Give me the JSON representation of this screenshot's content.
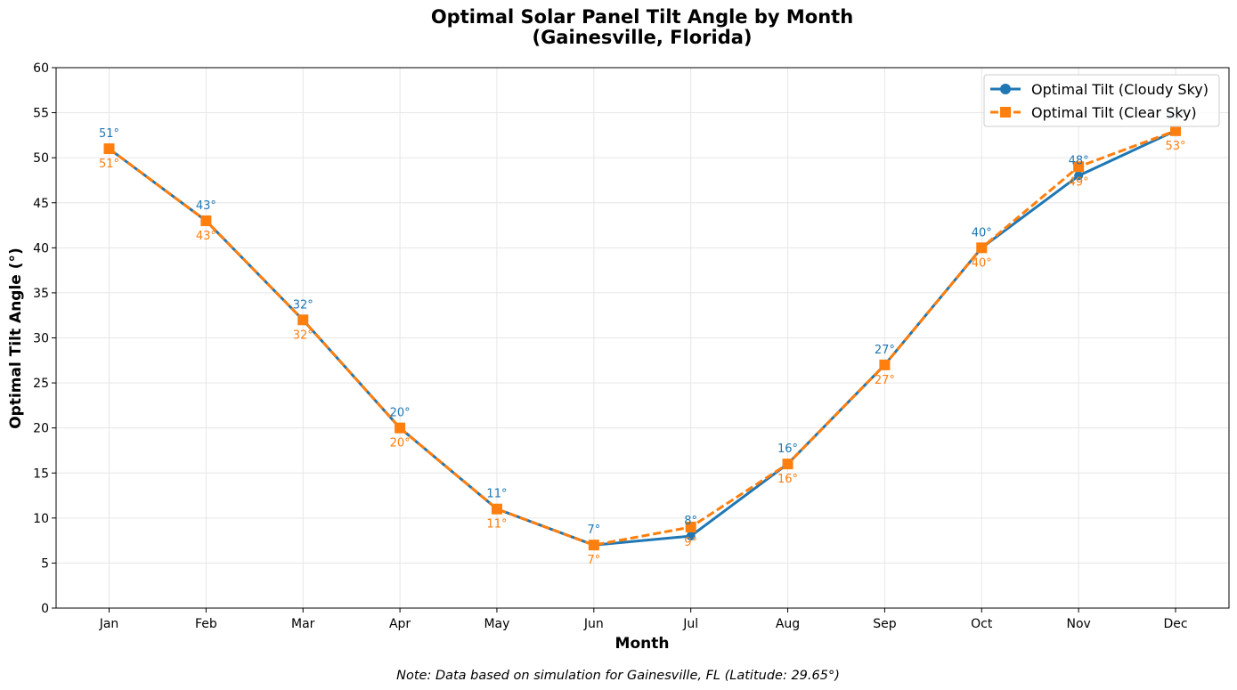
{
  "chart_data": {
    "type": "line",
    "title_line1": "Optimal Solar Panel Tilt Angle by Month",
    "title_line2": "(Gainesville, Florida)",
    "xlabel": "Month",
    "ylabel": "Optimal Tilt Angle (°)",
    "categories": [
      "Jan",
      "Feb",
      "Mar",
      "Apr",
      "May",
      "Jun",
      "Jul",
      "Aug",
      "Sep",
      "Oct",
      "Nov",
      "Dec"
    ],
    "ylim": [
      0,
      60
    ],
    "yticks": [
      0,
      5,
      10,
      15,
      20,
      25,
      30,
      35,
      40,
      45,
      50,
      55,
      60
    ],
    "grid": true,
    "legend_position": "top-right",
    "series": [
      {
        "name": "Optimal Tilt (Cloudy Sky)",
        "values": [
          51,
          43,
          32,
          20,
          11,
          7,
          8,
          16,
          27,
          40,
          48,
          53
        ],
        "labels": [
          "51°",
          "43°",
          "32°",
          "20°",
          "11°",
          "7°",
          "8°",
          "16°",
          "27°",
          "40°",
          "48°",
          "53°"
        ],
        "color": "#1f77b4",
        "line_style": "solid",
        "marker": "circle"
      },
      {
        "name": "Optimal Tilt (Clear Sky)",
        "values": [
          51,
          43,
          32,
          20,
          11,
          7,
          9,
          16,
          27,
          40,
          49,
          53
        ],
        "labels": [
          "51°",
          "43°",
          "32°",
          "20°",
          "11°",
          "7°",
          "9°",
          "16°",
          "27°",
          "40°",
          "49°",
          "53°"
        ],
        "color": "#ff7f0e",
        "line_style": "dashed",
        "marker": "square"
      }
    ],
    "note": "Note: Data based on simulation for Gainesville, FL (Latitude: 29.65°)"
  }
}
